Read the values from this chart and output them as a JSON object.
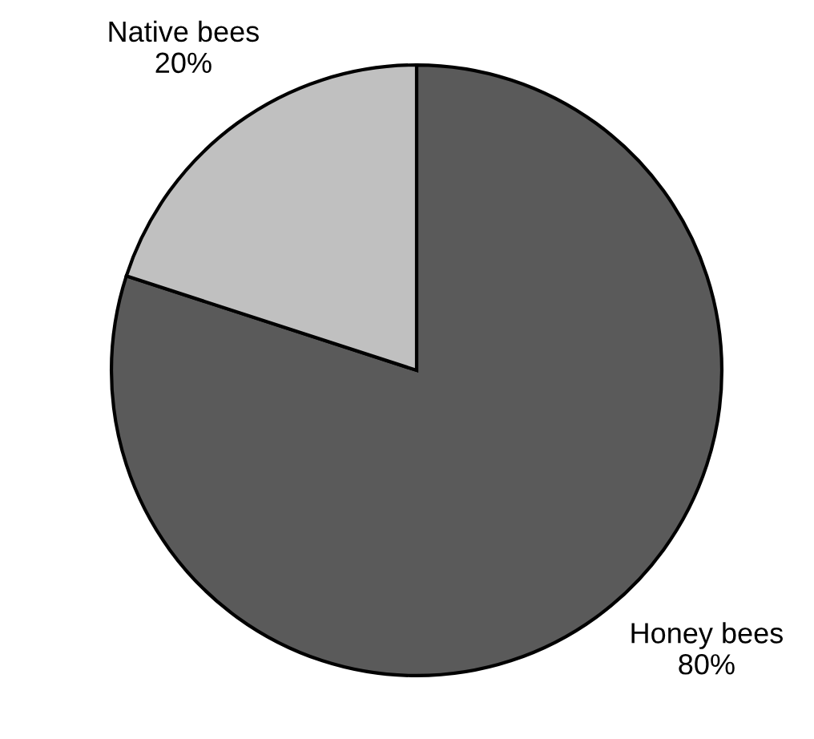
{
  "chart_data": {
    "type": "pie",
    "categories": [
      "Honey bees",
      "Native bees"
    ],
    "values": [
      80,
      20
    ],
    "colors": [
      "#5a5a5a",
      "#c0c0c0"
    ],
    "value_labels": [
      "80%",
      "20%"
    ]
  }
}
